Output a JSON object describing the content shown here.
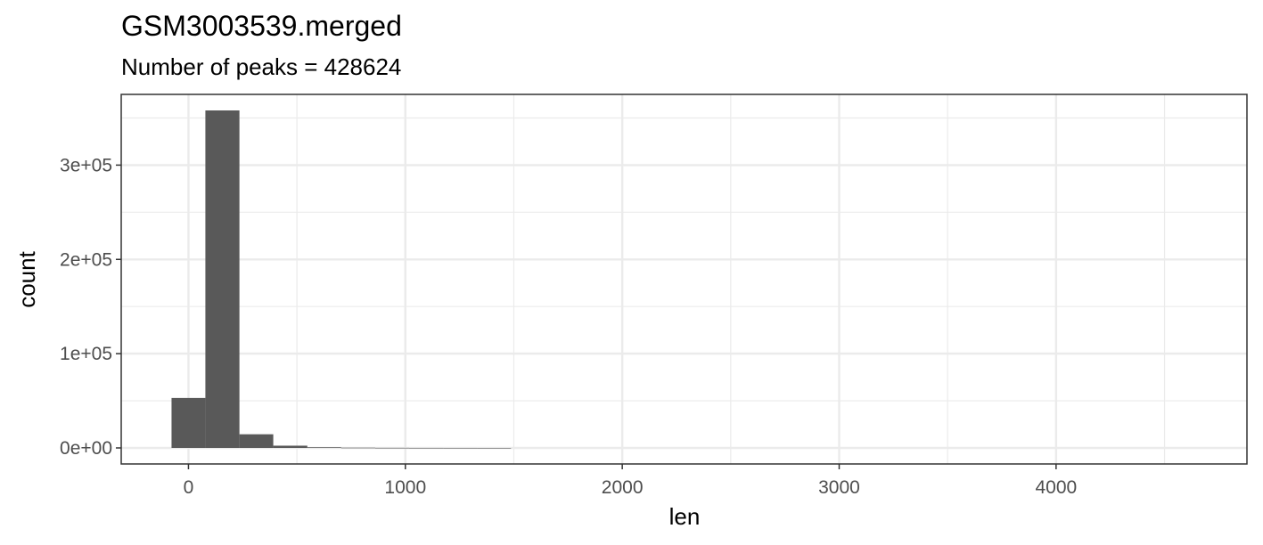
{
  "chart_data": {
    "type": "bar",
    "title": "GSM3003539.merged",
    "subtitle": "Number of peaks = 428624",
    "xlabel": "len",
    "ylabel": "count",
    "xlim": [
      -310,
      4880
    ],
    "ylim": [
      -17000,
      375000
    ],
    "x_ticks": [
      0,
      1000,
      2000,
      3000,
      4000
    ],
    "x_tick_labels": [
      "0",
      "1000",
      "2000",
      "3000",
      "4000"
    ],
    "x_minor_ticks": [
      500,
      1500,
      2500,
      3500,
      4500
    ],
    "y_ticks": [
      0,
      100000,
      200000,
      300000
    ],
    "y_tick_labels": [
      "0e+00",
      "1e+05",
      "2e+05",
      "3e+05"
    ],
    "y_minor_ticks": [
      50000,
      150000,
      250000,
      350000
    ],
    "bin_width": 156.5,
    "bins": [
      {
        "x0": -78,
        "x1": 78,
        "count": 53000
      },
      {
        "x0": 78,
        "x1": 235,
        "count": 358000
      },
      {
        "x0": 235,
        "x1": 391,
        "count": 14500
      },
      {
        "x0": 391,
        "x1": 548,
        "count": 2400
      },
      {
        "x0": 548,
        "x1": 704,
        "count": 700
      },
      {
        "x0": 704,
        "x1": 861,
        "count": 250
      },
      {
        "x0": 861,
        "x1": 1017,
        "count": 100
      },
      {
        "x0": 1017,
        "x1": 1174,
        "count": 40
      },
      {
        "x0": 1174,
        "x1": 1330,
        "count": 20
      },
      {
        "x0": 1330,
        "x1": 1487,
        "count": 10
      }
    ],
    "grid": true,
    "bar_color": "#595959",
    "grid_color": "#ebebeb",
    "panel_border_color": "#333333"
  }
}
